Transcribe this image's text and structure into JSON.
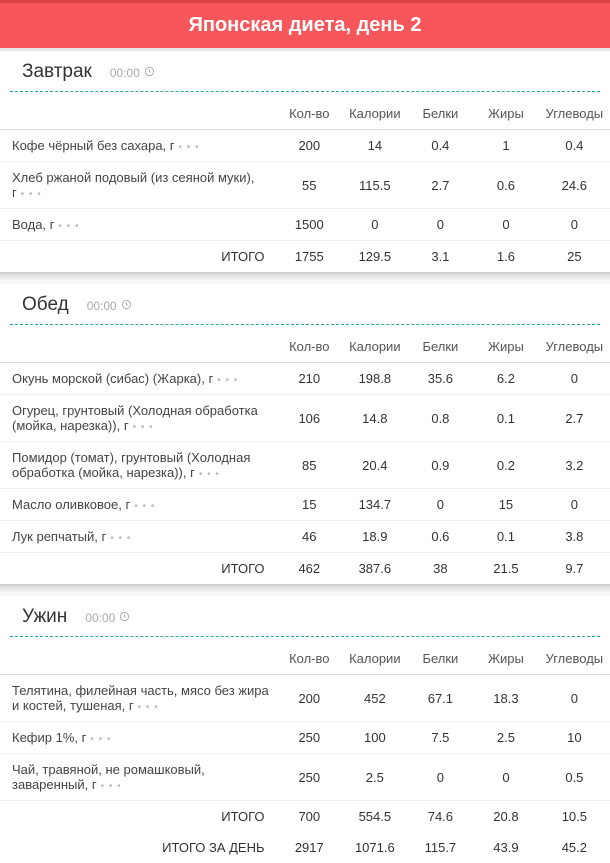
{
  "header": {
    "title": "Японская диета, день 2"
  },
  "columns": [
    "Кол-во",
    "Калории",
    "Белки",
    "Жиры",
    "Углеводы"
  ],
  "day_total_label": "ИТОГО ЗА ДЕНЬ",
  "total_label": "ИТОГО",
  "dots": "• • •",
  "meals": [
    {
      "name": "Завтрак",
      "time": "00:00",
      "rows": [
        {
          "name": "Кофе чёрный без сахара, г",
          "values": [
            "200",
            "14",
            "0.4",
            "1",
            "0.4"
          ]
        },
        {
          "name": "Хлеб ржаной подовый (из сеяной муки), г",
          "values": [
            "55",
            "115.5",
            "2.7",
            "0.6",
            "24.6"
          ]
        },
        {
          "name": "Вода, г",
          "values": [
            "1500",
            "0",
            "0",
            "0",
            "0"
          ]
        }
      ],
      "totals": [
        "1755",
        "129.5",
        "3.1",
        "1.6",
        "25"
      ]
    },
    {
      "name": "Обед",
      "time": "00:00",
      "rows": [
        {
          "name": "Окунь морской (сибас) (Жарка), г",
          "values": [
            "210",
            "198.8",
            "35.6",
            "6.2",
            "0"
          ]
        },
        {
          "name": "Огурец, грунтовый (Холодная обработка (мойка, нарезка)), г",
          "values": [
            "106",
            "14.8",
            "0.8",
            "0.1",
            "2.7"
          ]
        },
        {
          "name": "Помидор (томат), грунтовый (Холодная обработка (мойка, нарезка)), г",
          "values": [
            "85",
            "20.4",
            "0.9",
            "0.2",
            "3.2"
          ]
        },
        {
          "name": "Масло оливковое, г",
          "values": [
            "15",
            "134.7",
            "0",
            "15",
            "0"
          ]
        },
        {
          "name": "Лук репчатый, г",
          "values": [
            "46",
            "18.9",
            "0.6",
            "0.1",
            "3.8"
          ]
        }
      ],
      "totals": [
        "462",
        "387.6",
        "38",
        "21.5",
        "9.7"
      ]
    },
    {
      "name": "Ужин",
      "time": "00:00",
      "rows": [
        {
          "name": "Телятина, филейная часть, мясо без жира и костей, тушеная, г",
          "values": [
            "200",
            "452",
            "67.1",
            "18.3",
            "0"
          ]
        },
        {
          "name": "Кефир 1%, г",
          "values": [
            "250",
            "100",
            "7.5",
            "2.5",
            "10"
          ]
        },
        {
          "name": "Чай, травяной, не ромашковый, заваренный, г",
          "values": [
            "250",
            "2.5",
            "0",
            "0",
            "0.5"
          ]
        }
      ],
      "totals": [
        "700",
        "554.5",
        "74.6",
        "20.8",
        "10.5"
      ]
    }
  ],
  "day_totals": [
    "2917",
    "1071.6",
    "115.7",
    "43.9",
    "45.2"
  ],
  "colors": {
    "header_bg": "#f7575a",
    "header_border_top": "#d94040",
    "dashed_border": "#2aa79b",
    "text": "#333333",
    "muted": "#aaaaaa"
  }
}
